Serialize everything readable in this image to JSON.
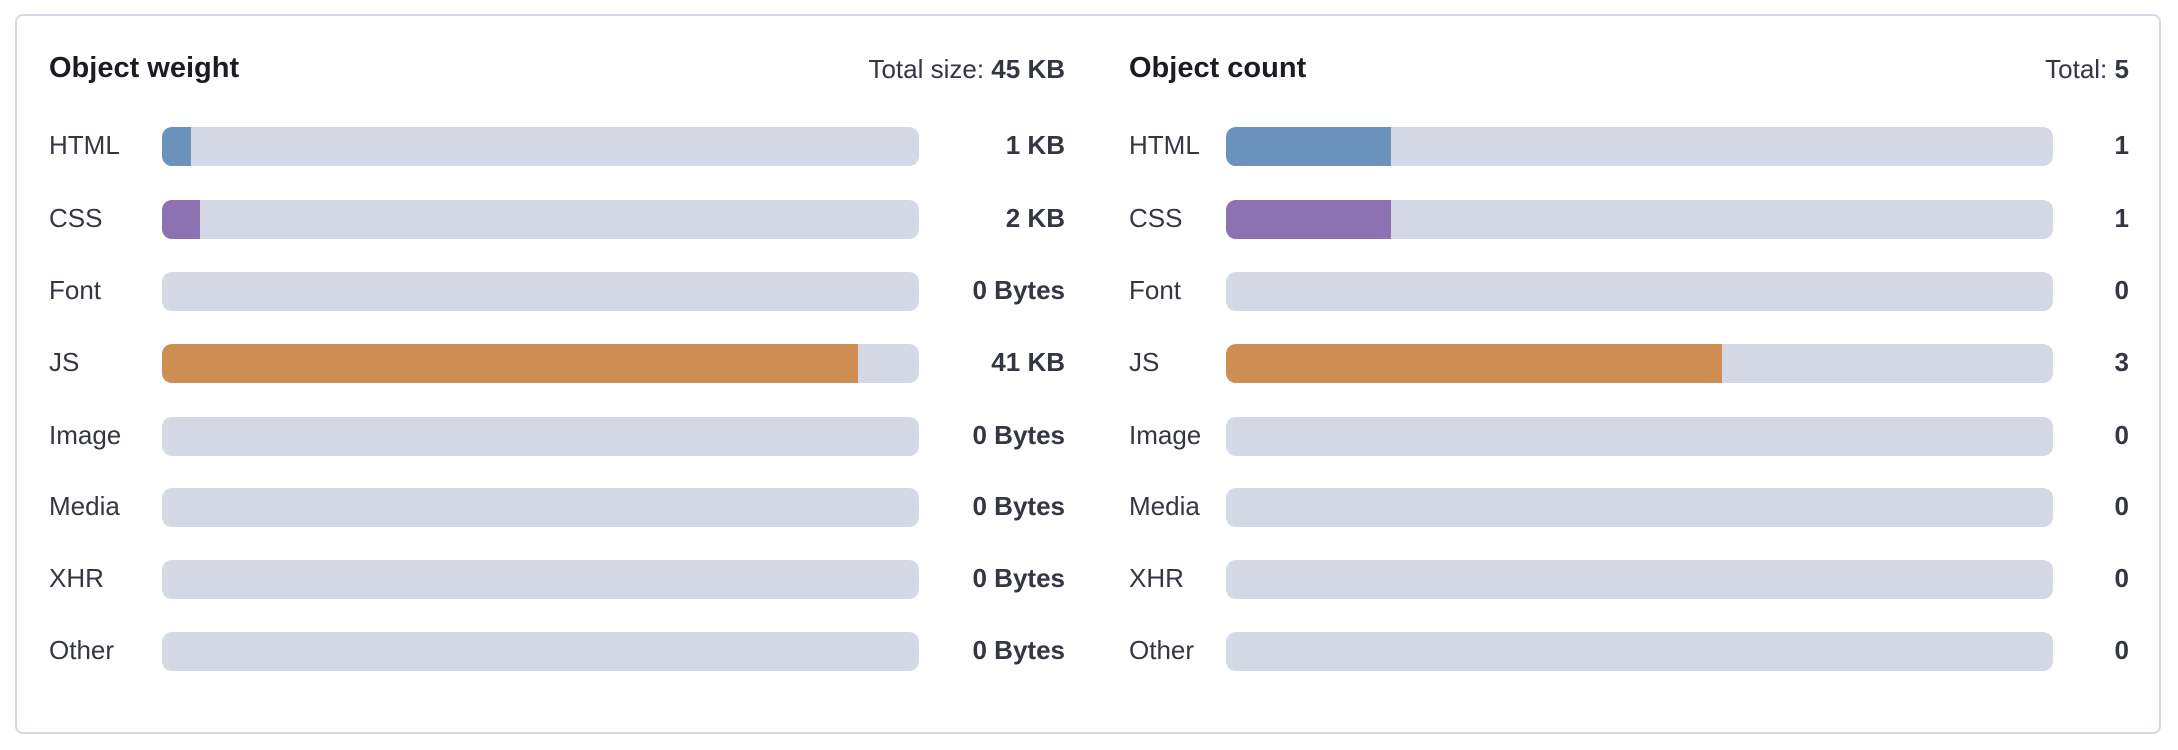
{
  "colors": {
    "HTML": "#6b91bd",
    "CSS": "#8c72b1",
    "JS": "#cf8e53",
    "track": "#d4d9e5"
  },
  "weight": {
    "title": "Object weight",
    "total_label": "Total size:",
    "total_value": "45 KB",
    "rows": [
      {
        "label": "HTML",
        "value": "1 KB",
        "fill": 0.038
      },
      {
        "label": "CSS",
        "value": "2 KB",
        "fill": 0.05
      },
      {
        "label": "Font",
        "value": "0 Bytes",
        "fill": 0
      },
      {
        "label": "JS",
        "value": "41 KB",
        "fill": 0.92
      },
      {
        "label": "Image",
        "value": "0 Bytes",
        "fill": 0
      },
      {
        "label": "Media",
        "value": "0 Bytes",
        "fill": 0
      },
      {
        "label": "XHR",
        "value": "0 Bytes",
        "fill": 0
      },
      {
        "label": "Other",
        "value": "0 Bytes",
        "fill": 0
      }
    ]
  },
  "count": {
    "title": "Object count",
    "total_label": "Total:",
    "total_value": "5",
    "rows": [
      {
        "label": "HTML",
        "value": "1",
        "fill": 0.2
      },
      {
        "label": "CSS",
        "value": "1",
        "fill": 0.2
      },
      {
        "label": "Font",
        "value": "0",
        "fill": 0
      },
      {
        "label": "JS",
        "value": "3",
        "fill": 0.6
      },
      {
        "label": "Image",
        "value": "0",
        "fill": 0
      },
      {
        "label": "Media",
        "value": "0",
        "fill": 0
      },
      {
        "label": "XHR",
        "value": "0",
        "fill": 0
      },
      {
        "label": "Other",
        "value": "0",
        "fill": 0
      }
    ]
  }
}
